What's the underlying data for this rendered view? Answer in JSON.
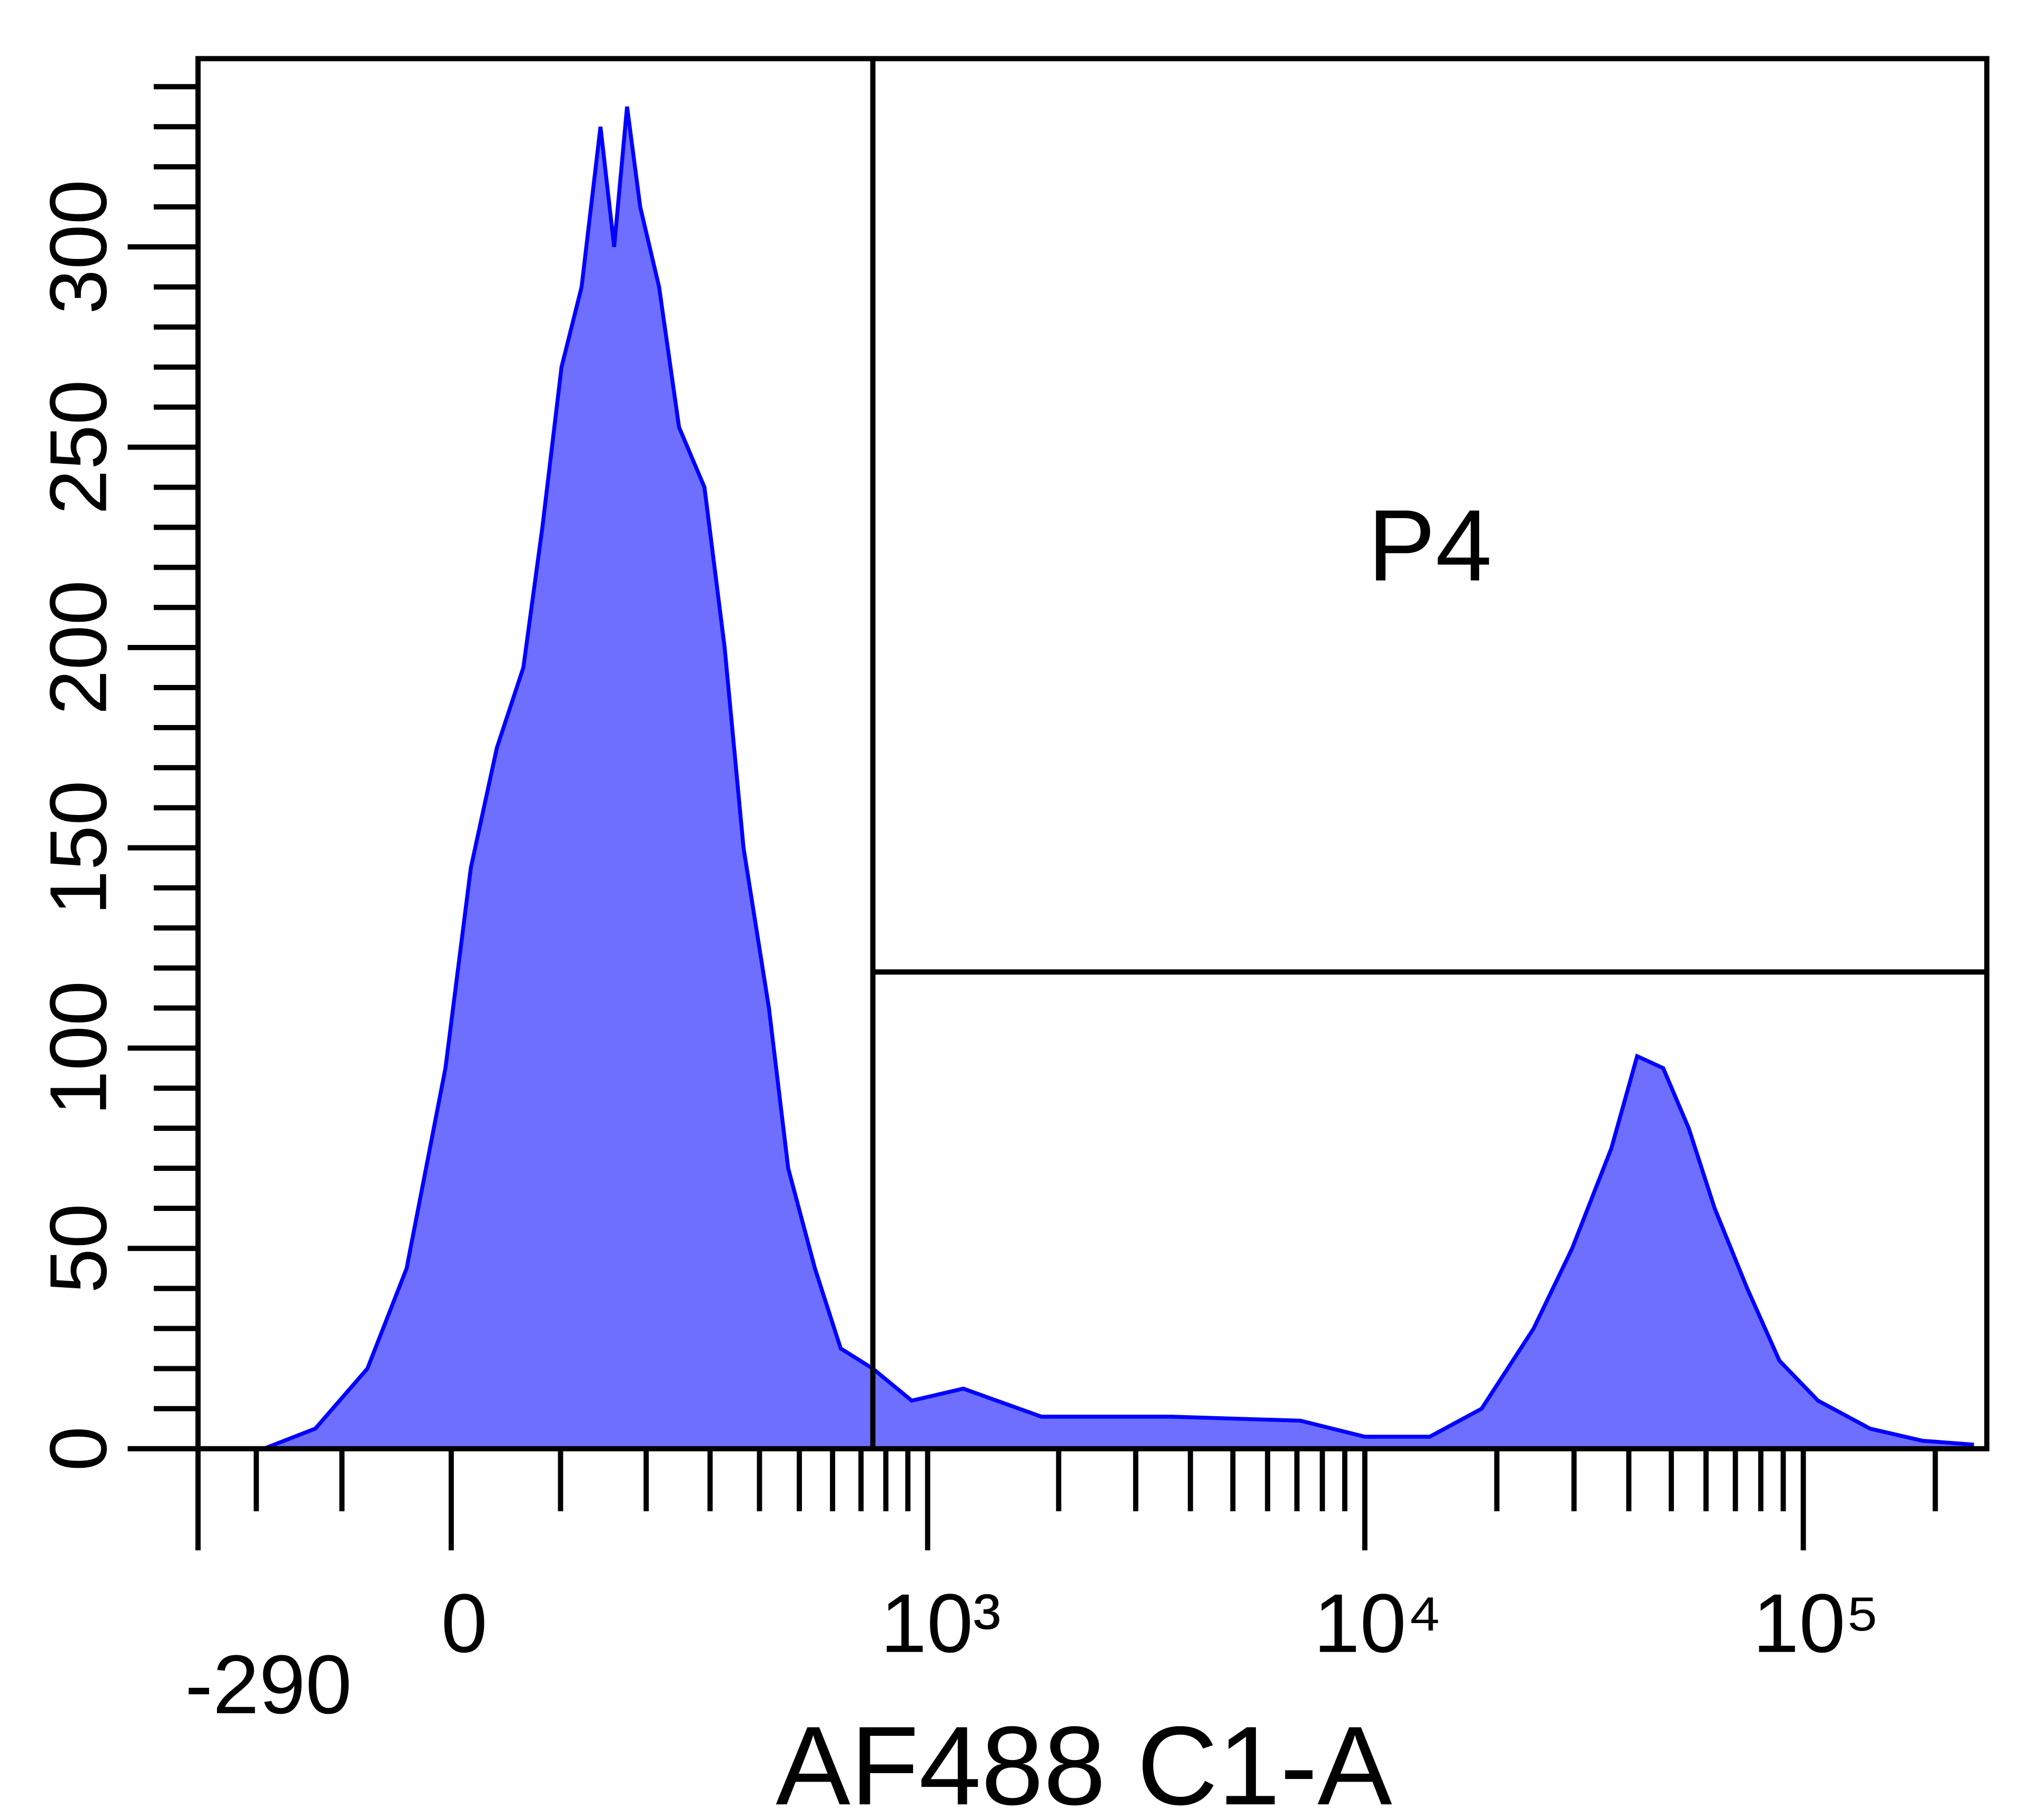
{
  "chart_data": {
    "type": "area",
    "xlabel": "AF488 C1-A",
    "xscale": "biexponential",
    "xlim": [
      -290,
      262144
    ],
    "ylim": [
      0,
      347
    ],
    "xticks": [
      -290,
      0,
      {
        "value": 1000,
        "label": "10³"
      },
      {
        "value": 10000,
        "label": "10⁴"
      },
      {
        "value": 100000,
        "label": "10⁵"
      }
    ],
    "xminorticks": [
      -200,
      -100,
      100,
      200,
      300,
      400,
      500,
      600,
      700,
      800,
      900,
      2000,
      3000,
      4000,
      5000,
      6000,
      7000,
      8000,
      9000,
      20000,
      30000,
      40000,
      50000,
      60000,
      70000,
      80000,
      90000,
      200000
    ],
    "yticks": [
      0,
      50,
      100,
      150,
      200,
      250,
      300
    ],
    "yminorticks": [
      10,
      20,
      30,
      40,
      60,
      70,
      80,
      90,
      110,
      120,
      130,
      140,
      160,
      170,
      180,
      190,
      210,
      220,
      230,
      240,
      260,
      270,
      280,
      290,
      310,
      320,
      330,
      340
    ],
    "x": [
      -190,
      -128,
      -75,
      -39,
      -5,
      17,
      40,
      64,
      82,
      101,
      122,
      143,
      159,
      175,
      192,
      218,
      248,
      290,
      327,
      365,
      422,
      470,
      545,
      627,
      746,
      919,
      1209,
      1825,
      3610,
      7130,
      10000,
      14060,
      18460,
      24250,
      29700,
      36500,
      41800,
      47900,
      54800,
      62800,
      74500,
      88200,
      108000,
      142000,
      187000,
      245000
    ],
    "series": [
      {
        "color": "#0000ff",
        "fill": "#6f6fff",
        "values": [
          0,
          5,
          20,
          45,
          95,
          145,
          175,
          195,
          230,
          270,
          290,
          330,
          300,
          335,
          310,
          290,
          255,
          240,
          200,
          150,
          110,
          70,
          45,
          25,
          20,
          12,
          15,
          8,
          8,
          7,
          3,
          3,
          10,
          30,
          50,
          75,
          98,
          95,
          80,
          60,
          40,
          22,
          12,
          5,
          2,
          1
        ]
      }
    ],
    "gates": [
      {
        "label": "P4",
        "xlim": [
          746,
          262144
        ],
        "ylim": [
          119,
          347
        ]
      }
    ]
  }
}
